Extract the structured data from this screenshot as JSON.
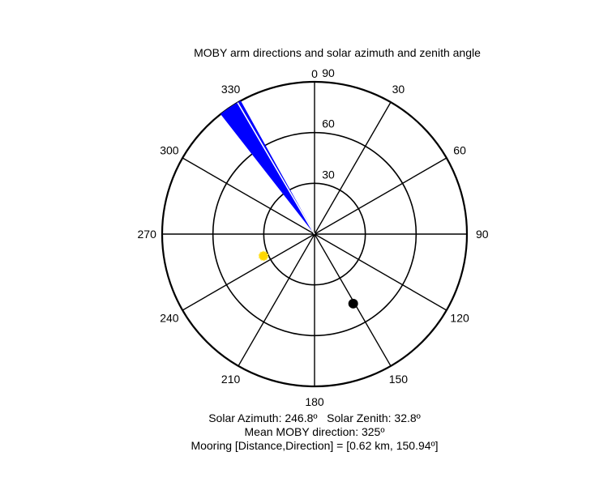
{
  "chart_data": {
    "type": "polar",
    "title": "MOBY arm directions and solar azimuth and zenith angle",
    "angular_axis": {
      "zero": "top",
      "direction": "clockwise",
      "tick_labels": [
        "0",
        "30",
        "60",
        "90",
        "120",
        "150",
        "180",
        "210",
        "240",
        "270",
        "300",
        "330"
      ],
      "tick_values": [
        0,
        30,
        60,
        90,
        120,
        150,
        180,
        210,
        240,
        270,
        300,
        330
      ]
    },
    "radial_axis": {
      "range": [
        0,
        90
      ],
      "rings": [
        30,
        60,
        90
      ],
      "tick_labels": [
        "30",
        "60",
        "90"
      ]
    },
    "series": [
      {
        "kind": "wedge",
        "color": "#0000ff",
        "from_angle": 322,
        "to_angle": 331,
        "radius": 90,
        "gaps": [
          {
            "angle": 329.7,
            "width": 0.4
          }
        ]
      },
      {
        "kind": "point",
        "name": "sun",
        "color": "#ffd700",
        "angle": 246.8,
        "radius": 32.8
      },
      {
        "kind": "point",
        "name": "mooring",
        "color": "#000000",
        "angle": 150.94,
        "radius": 47
      }
    ],
    "captions": [
      "Solar Azimuth: 246.8º   Solar Zenith: 32.8º",
      "Mean MOBY direction: 325º",
      "Mooring [Distance,Direction] = [0.62 km, 150.94º]"
    ]
  }
}
